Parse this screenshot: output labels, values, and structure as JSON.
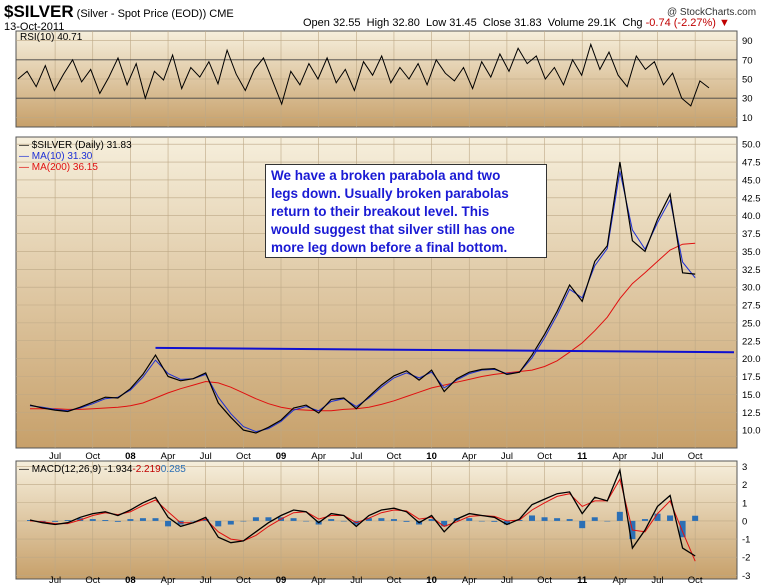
{
  "header": {
    "symbol": "$SILVER",
    "description": "(Silver - Spot Price (EOD))",
    "exchange": "CME",
    "date": "13-Oct-2011",
    "watermark": "@ StockCharts.com",
    "open_label": "Open",
    "open_value": "32.55",
    "high_label": "High",
    "high_value": "32.80",
    "low_label": "Low",
    "low_value": "31.45",
    "close_label": "Close",
    "close_value": "31.83",
    "volume_label": "Volume",
    "volume_value": "29.1K",
    "chg_label": "Chg",
    "chg_value": "-0.74 (-2.27%)"
  },
  "colors": {
    "background_top": "#f6efdc",
    "background_bottom": "#c7a06a",
    "price": "#000000",
    "ma10": "#1d2fd6",
    "ma200": "#e01010",
    "trendline": "#1010d0",
    "annotation_text": "#1a1ad4",
    "macd_hist": "#2b6fb5",
    "rsi_fill": "#4d6b2a"
  },
  "annotation": {
    "line1": "We have a broken parabola and two",
    "line2": "legs down. Usually broken parabolas",
    "line3": "return to their breakout level. This",
    "line4": "would suggest that silver still has one",
    "line5": "more leg down before a final bottom."
  },
  "x_labels": [
    "Jul",
    "Oct",
    "08",
    "Apr",
    "Jul",
    "Oct",
    "09",
    "Apr",
    "Jul",
    "Oct",
    "10",
    "Apr",
    "Jul",
    "Oct",
    "11",
    "Apr",
    "Jul",
    "Oct"
  ],
  "chart_data": [
    {
      "type": "line",
      "panel": "rsi",
      "title": "RSI(10) 40.71",
      "ylim": [
        0,
        100
      ],
      "yticks": [
        10,
        30,
        50,
        70,
        90
      ],
      "overbought": 70,
      "oversold": 30,
      "series": [
        {
          "name": "RSI(10)",
          "values": [
            50,
            58,
            42,
            64,
            38,
            55,
            70,
            47,
            60,
            35,
            52,
            72,
            44,
            66,
            30,
            58,
            49,
            75,
            40,
            62,
            52,
            68,
            45,
            80,
            55,
            38,
            60,
            72,
            48,
            24,
            58,
            44,
            66,
            50,
            72,
            46,
            60,
            38,
            68,
            54,
            74,
            46,
            62,
            50,
            66,
            44,
            70,
            56,
            48,
            62,
            40,
            68,
            52,
            76,
            58,
            82,
            66,
            74,
            50,
            62,
            44,
            70,
            54,
            86,
            60,
            78,
            54,
            42,
            74,
            60,
            68,
            44,
            56,
            30,
            22,
            48,
            40.71
          ]
        }
      ]
    },
    {
      "type": "line",
      "panel": "price",
      "title": "$SILVER (Daily) 31.83",
      "xlabel": "",
      "ylabel": "",
      "ylim": [
        7.5,
        51
      ],
      "yticks": [
        10,
        12.5,
        15,
        17.5,
        20,
        22.5,
        25,
        27.5,
        30,
        32.5,
        35,
        37.5,
        40,
        42.5,
        45,
        47.5,
        50
      ],
      "x": [
        "2007-05",
        "2007-06",
        "2007-07",
        "2007-08",
        "2007-09",
        "2007-10",
        "2007-11",
        "2007-12",
        "2008-01",
        "2008-02",
        "2008-03",
        "2008-04",
        "2008-05",
        "2008-06",
        "2008-07",
        "2008-08",
        "2008-09",
        "2008-10",
        "2008-11",
        "2008-12",
        "2009-01",
        "2009-02",
        "2009-03",
        "2009-04",
        "2009-05",
        "2009-06",
        "2009-07",
        "2009-08",
        "2009-09",
        "2009-10",
        "2009-11",
        "2009-12",
        "2010-01",
        "2010-02",
        "2010-03",
        "2010-04",
        "2010-05",
        "2010-06",
        "2010-07",
        "2010-08",
        "2010-09",
        "2010-10",
        "2010-11",
        "2010-12",
        "2011-01",
        "2011-02",
        "2011-03",
        "2011-04",
        "2011-05",
        "2011-06",
        "2011-07",
        "2011-08",
        "2011-09",
        "2011-10"
      ],
      "series": [
        {
          "name": "$SILVER (Daily) 31.83",
          "values": [
            13.5,
            13.1,
            12.8,
            12.6,
            13.2,
            13.9,
            14.6,
            14.5,
            15.8,
            17.8,
            20.5,
            17.5,
            16.9,
            17.2,
            18.0,
            13.8,
            11.8,
            10.0,
            9.6,
            10.4,
            11.4,
            13.1,
            13.5,
            12.4,
            14.3,
            14.5,
            13.0,
            14.7,
            16.3,
            17.6,
            18.3,
            17.0,
            18.4,
            15.4,
            17.2,
            18.1,
            18.5,
            18.6,
            17.8,
            18.1,
            20.5,
            23.4,
            26.6,
            30.3,
            28.0,
            33.6,
            35.8,
            47.5,
            36.5,
            35.0,
            39.5,
            43.0,
            32.0,
            31.83
          ]
        },
        {
          "name": "MA(10) 31.30",
          "values": [
            13.4,
            13.2,
            12.9,
            12.7,
            13.1,
            13.7,
            14.4,
            14.6,
            15.6,
            17.4,
            19.8,
            17.9,
            17.1,
            17.2,
            17.8,
            14.6,
            12.3,
            10.5,
            9.8,
            10.2,
            11.2,
            12.8,
            13.3,
            12.7,
            14.0,
            14.4,
            13.3,
            14.5,
            16.0,
            17.3,
            18.0,
            17.3,
            18.1,
            15.9,
            17.0,
            17.9,
            18.4,
            18.5,
            17.9,
            18.1,
            20.1,
            22.9,
            26.1,
            29.7,
            28.5,
            33.0,
            35.4,
            46.2,
            38.0,
            35.3,
            39.0,
            42.2,
            33.5,
            31.3
          ]
        },
        {
          "name": "MA(200) 36.15",
          "values": [
            13.0,
            13.0,
            13.0,
            12.9,
            12.9,
            13.0,
            13.1,
            13.2,
            13.4,
            13.8,
            14.5,
            15.2,
            15.8,
            16.3,
            16.8,
            16.6,
            16.0,
            15.2,
            14.4,
            13.7,
            13.2,
            12.9,
            12.8,
            12.7,
            12.7,
            12.9,
            13.0,
            13.2,
            13.6,
            14.1,
            14.7,
            15.3,
            15.9,
            16.3,
            16.7,
            17.1,
            17.5,
            17.8,
            18.0,
            18.2,
            18.4,
            18.9,
            19.7,
            20.9,
            22.2,
            23.9,
            25.8,
            28.4,
            30.5,
            32.0,
            33.6,
            35.2,
            36.0,
            36.15
          ]
        }
      ],
      "trendline": {
        "x": [
          "2008-03",
          "2011-10"
        ],
        "y": [
          21.5,
          20.9
        ]
      }
    },
    {
      "type": "line",
      "panel": "macd",
      "title": "MACD(12,26,9) -1.934, -2.219, 0.285",
      "ylim": [
        -3.2,
        3.3
      ],
      "yticks": [
        -3,
        -2,
        -1,
        0,
        1,
        2,
        3
      ],
      "series": [
        {
          "name": "MACD(12,26,9) -1.934",
          "values": [
            0.05,
            -0.1,
            -0.2,
            -0.1,
            0.2,
            0.4,
            0.5,
            0.3,
            0.6,
            1.0,
            1.3,
            0.2,
            -0.3,
            -0.1,
            0.2,
            -0.9,
            -1.2,
            -1.1,
            -0.6,
            -0.1,
            0.3,
            0.6,
            0.5,
            -0.1,
            0.4,
            0.3,
            -0.3,
            0.3,
            0.6,
            0.7,
            0.5,
            -0.1,
            0.3,
            -0.6,
            0.1,
            0.4,
            0.3,
            0.2,
            -0.2,
            0.1,
            0.9,
            1.2,
            1.5,
            1.6,
            0.4,
            1.3,
            1.1,
            2.8,
            -1.5,
            -0.5,
            0.8,
            1.4,
            -1.5,
            -1.934
          ]
        },
        {
          "name": "-2.219",
          "values": [
            0.0,
            -0.05,
            -0.15,
            -0.15,
            0.05,
            0.3,
            0.45,
            0.35,
            0.5,
            0.85,
            1.15,
            0.5,
            -0.1,
            -0.1,
            0.1,
            -0.6,
            -1.0,
            -1.1,
            -0.8,
            -0.3,
            0.1,
            0.45,
            0.5,
            0.1,
            0.3,
            0.3,
            -0.1,
            0.15,
            0.45,
            0.6,
            0.55,
            0.1,
            0.2,
            -0.3,
            -0.05,
            0.25,
            0.3,
            0.25,
            0.0,
            0.05,
            0.6,
            1.0,
            1.35,
            1.5,
            0.8,
            1.1,
            1.1,
            2.3,
            -0.5,
            -0.6,
            0.4,
            1.1,
            -0.6,
            -2.219
          ]
        },
        {
          "name": "0.285",
          "values": [
            0.05,
            -0.05,
            -0.05,
            0.05,
            0.15,
            0.1,
            0.05,
            -0.05,
            0.1,
            0.15,
            0.15,
            -0.3,
            -0.2,
            0.0,
            0.1,
            -0.3,
            -0.2,
            0.0,
            0.2,
            0.2,
            0.2,
            0.15,
            0.0,
            -0.2,
            0.1,
            0.0,
            -0.2,
            0.15,
            0.15,
            0.1,
            -0.05,
            -0.2,
            0.1,
            -0.3,
            0.15,
            0.15,
            0.0,
            -0.05,
            -0.2,
            0.05,
            0.3,
            0.2,
            0.15,
            0.1,
            -0.4,
            0.2,
            0.0,
            0.5,
            -1.0,
            0.1,
            0.4,
            0.3,
            -0.9,
            0.285
          ]
        }
      ]
    }
  ]
}
